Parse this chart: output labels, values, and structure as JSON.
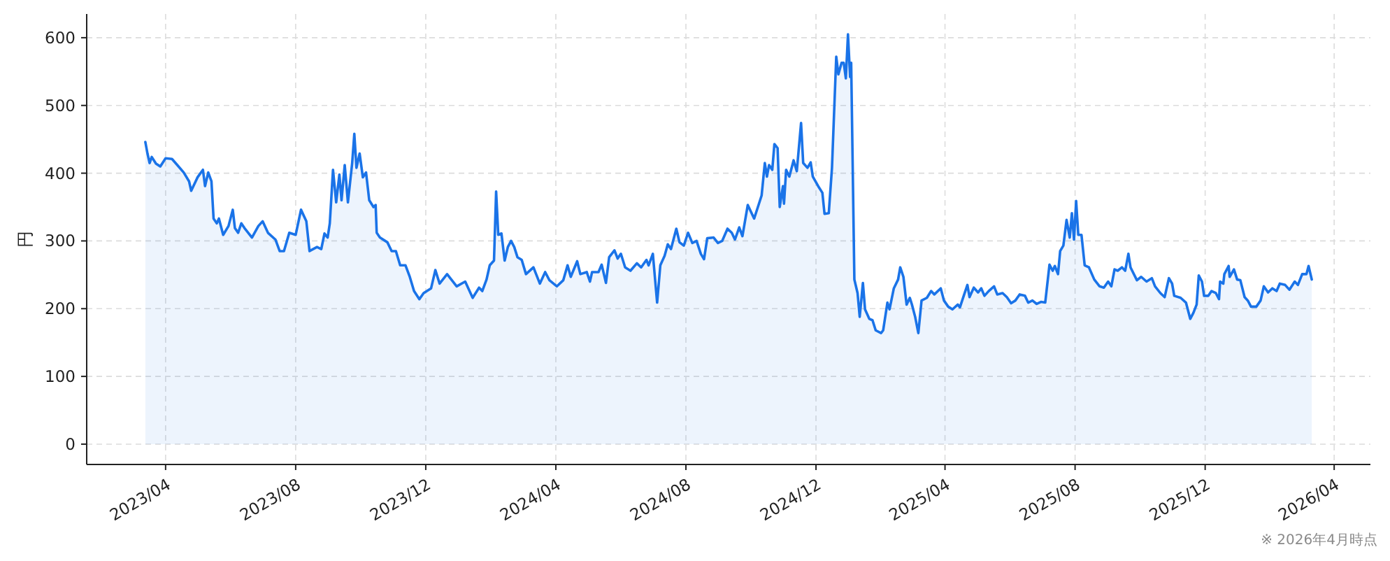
{
  "chart_data": {
    "type": "area",
    "ylabel": "円",
    "x": [
      "2023-03-13",
      "2023-03-15",
      "2023-03-17",
      "2023-03-19",
      "2023-03-23",
      "2023-03-27",
      "2023-04-01",
      "2023-04-07",
      "2023-04-12",
      "2023-04-18",
      "2023-04-23",
      "2023-04-25",
      "2023-05-01",
      "2023-05-06",
      "2023-05-08",
      "2023-05-11",
      "2023-05-14",
      "2023-05-16",
      "2023-05-19",
      "2023-05-21",
      "2023-05-25",
      "2023-05-30",
      "2023-06-03",
      "2023-06-05",
      "2023-06-08",
      "2023-06-11",
      "2023-06-14",
      "2023-06-21",
      "2023-06-27",
      "2023-07-01",
      "2023-07-06",
      "2023-07-13",
      "2023-07-17",
      "2023-07-21",
      "2023-07-26",
      "2023-08-01",
      "2023-08-06",
      "2023-08-11",
      "2023-08-14",
      "2023-08-21",
      "2023-08-25",
      "2023-08-28",
      "2023-08-31",
      "2023-09-02",
      "2023-09-05",
      "2023-09-08",
      "2023-09-11",
      "2023-09-13",
      "2023-09-16",
      "2023-09-19",
      "2023-09-23",
      "2023-09-25",
      "2023-09-27",
      "2023-09-30",
      "2023-10-03",
      "2023-10-06",
      "2023-10-09",
      "2023-10-13",
      "2023-10-15",
      "2023-10-16",
      "2023-10-19",
      "2023-10-26",
      "2023-10-30",
      "2023-11-03",
      "2023-11-07",
      "2023-11-12",
      "2023-11-16",
      "2023-11-20",
      "2023-11-25",
      "2023-11-29",
      "2023-12-06",
      "2023-12-10",
      "2023-12-14",
      "2023-12-21",
      "2023-12-30",
      "2024-01-07",
      "2024-01-14",
      "2024-01-20",
      "2024-01-23",
      "2024-01-27",
      "2024-01-30",
      "2024-02-03",
      "2024-02-05",
      "2024-02-07",
      "2024-02-10",
      "2024-02-13",
      "2024-02-16",
      "2024-02-19",
      "2024-02-22",
      "2024-02-25",
      "2024-02-29",
      "2024-03-04",
      "2024-03-11",
      "2024-03-17",
      "2024-03-22",
      "2024-03-26",
      "2024-04-02",
      "2024-04-08",
      "2024-04-12",
      "2024-04-15",
      "2024-04-21",
      "2024-04-24",
      "2024-04-30",
      "2024-05-03",
      "2024-05-05",
      "2024-05-11",
      "2024-05-14",
      "2024-05-18",
      "2024-05-21",
      "2024-05-26",
      "2024-05-29",
      "2024-06-01",
      "2024-06-05",
      "2024-06-10",
      "2024-06-16",
      "2024-06-20",
      "2024-06-25",
      "2024-06-27",
      "2024-07-01",
      "2024-07-05",
      "2024-07-08",
      "2024-07-12",
      "2024-07-15",
      "2024-07-18",
      "2024-07-23",
      "2024-07-26",
      "2024-07-30",
      "2024-08-03",
      "2024-08-07",
      "2024-08-11",
      "2024-08-15",
      "2024-08-18",
      "2024-08-21",
      "2024-08-27",
      "2024-08-31",
      "2024-09-04",
      "2024-09-09",
      "2024-09-13",
      "2024-09-16",
      "2024-09-20",
      "2024-09-23",
      "2024-09-28",
      "2024-10-04",
      "2024-10-11",
      "2024-10-14",
      "2024-10-16",
      "2024-10-18",
      "2024-10-21",
      "2024-10-23",
      "2024-10-26",
      "2024-10-28",
      "2024-10-31",
      "2024-11-01",
      "2024-11-03",
      "2024-11-06",
      "2024-11-10",
      "2024-11-13",
      "2024-11-17",
      "2024-11-19",
      "2024-11-23",
      "2024-11-26",
      "2024-11-28",
      "2024-12-03",
      "2024-12-07",
      "2024-12-09",
      "2024-12-13",
      "2024-12-16",
      "2024-12-20",
      "2024-12-22",
      "2024-12-25",
      "2024-12-27",
      "2024-12-29",
      "2024-12-31",
      "2025-01-02",
      "2025-01-03",
      "2025-01-06",
      "2025-01-09",
      "2025-01-11",
      "2025-01-14",
      "2025-01-16",
      "2025-01-20",
      "2025-01-23",
      "2025-01-26",
      "2025-01-31",
      "2025-02-02",
      "2025-02-06",
      "2025-02-08",
      "2025-02-12",
      "2025-02-16",
      "2025-02-18",
      "2025-02-21",
      "2025-02-24",
      "2025-02-27",
      "2025-03-01",
      "2025-03-04",
      "2025-03-07",
      "2025-03-10",
      "2025-03-15",
      "2025-03-19",
      "2025-03-22",
      "2025-03-28",
      "2025-03-31",
      "2025-04-04",
      "2025-04-08",
      "2025-04-13",
      "2025-04-15",
      "2025-04-19",
      "2025-04-22",
      "2025-04-24",
      "2025-04-28",
      "2025-05-02",
      "2025-05-05",
      "2025-05-08",
      "2025-05-12",
      "2025-05-17",
      "2025-05-20",
      "2025-05-25",
      "2025-05-29",
      "2025-06-02",
      "2025-06-06",
      "2025-06-10",
      "2025-06-15",
      "2025-06-18",
      "2025-06-22",
      "2025-06-26",
      "2025-06-30",
      "2025-07-04",
      "2025-07-08",
      "2025-07-11",
      "2025-07-13",
      "2025-07-16",
      "2025-07-18",
      "2025-07-21",
      "2025-07-24",
      "2025-07-27",
      "2025-07-29",
      "2025-07-31",
      "2025-08-02",
      "2025-08-04",
      "2025-08-07",
      "2025-08-10",
      "2025-08-14",
      "2025-08-19",
      "2025-08-24",
      "2025-08-28",
      "2025-09-01",
      "2025-09-04",
      "2025-09-07",
      "2025-09-10",
      "2025-09-14",
      "2025-09-17",
      "2025-09-20",
      "2025-09-22",
      "2025-09-28",
      "2025-10-02",
      "2025-10-07",
      "2025-10-12",
      "2025-10-15",
      "2025-10-20",
      "2025-10-24",
      "2025-10-28",
      "2025-10-31",
      "2025-11-02",
      "2025-11-08",
      "2025-11-13",
      "2025-11-17",
      "2025-11-20",
      "2025-11-23",
      "2025-11-25",
      "2025-11-28",
      "2025-11-30",
      "2025-12-04",
      "2025-12-07",
      "2025-12-11",
      "2025-12-14",
      "2025-12-15",
      "2025-12-18",
      "2025-12-19",
      "2025-12-23",
      "2025-12-24",
      "2025-12-28",
      "2025-12-31",
      "2026-01-03",
      "2026-01-07",
      "2026-01-10",
      "2026-01-13",
      "2026-01-18",
      "2026-01-22",
      "2026-01-25",
      "2026-01-29",
      "2026-02-02",
      "2026-02-06",
      "2026-02-09",
      "2026-02-14",
      "2026-02-18",
      "2026-02-23",
      "2026-02-26",
      "2026-03-02",
      "2026-03-06",
      "2026-03-08",
      "2026-03-11"
    ],
    "series": [
      {
        "color": "#1a73e8",
        "values": [
          446,
          429,
          415,
          424,
          414,
          410,
          422,
          421,
          412,
          401,
          388,
          374,
          394,
          405,
          381,
          401,
          388,
          333,
          326,
          333,
          309,
          322,
          346,
          319,
          312,
          326,
          319,
          305,
          322,
          329,
          312,
          302,
          285,
          285,
          312,
          309,
          346,
          329,
          285,
          291,
          288,
          311,
          305,
          326,
          405,
          357,
          398,
          360,
          412,
          357,
          415,
          458,
          408,
          429,
          394,
          401,
          360,
          350,
          353,
          312,
          305,
          298,
          285,
          285,
          264,
          264,
          247,
          226,
          214,
          223,
          230,
          257,
          237,
          251,
          233,
          240,
          216,
          231,
          226,
          243,
          264,
          271,
          373,
          309,
          311,
          271,
          291,
          300,
          291,
          276,
          272,
          251,
          261,
          237,
          254,
          242,
          233,
          242,
          264,
          247,
          270,
          251,
          254,
          240,
          254,
          254,
          265,
          238,
          276,
          286,
          274,
          281,
          261,
          256,
          267,
          261,
          272,
          264,
          281,
          209,
          264,
          278,
          295,
          288,
          318,
          298,
          293,
          312,
          297,
          300,
          281,
          273,
          304,
          305,
          297,
          300,
          318,
          312,
          302,
          320,
          307,
          353,
          333,
          367,
          415,
          395,
          412,
          405,
          443,
          437,
          350,
          381,
          355,
          405,
          395,
          419,
          403,
          474,
          415,
          408,
          416,
          395,
          381,
          371,
          340,
          341,
          408,
          572,
          546,
          563,
          563,
          540,
          605,
          542,
          563,
          243,
          223,
          188,
          238,
          199,
          185,
          183,
          168,
          164,
          168,
          209,
          199,
          230,
          243,
          261,
          247,
          206,
          216,
          206,
          188,
          164,
          212,
          216,
          226,
          221,
          230,
          212,
          203,
          199,
          206,
          202,
          221,
          235,
          217,
          231,
          224,
          230,
          219,
          226,
          233,
          221,
          223,
          217,
          208,
          212,
          221,
          219,
          209,
          212,
          207,
          210,
          209,
          265,
          256,
          263,
          251,
          285,
          293,
          331,
          305,
          341,
          302,
          359,
          309,
          309,
          264,
          261,
          243,
          233,
          231,
          240,
          233,
          258,
          256,
          261,
          256,
          281,
          261,
          242,
          247,
          240,
          245,
          233,
          223,
          217,
          245,
          237,
          219,
          216,
          209,
          185,
          194,
          206,
          249,
          240,
          219,
          219,
          226,
          223,
          214,
          240,
          237,
          251,
          263,
          247,
          258,
          243,
          242,
          217,
          212,
          203,
          203,
          212,
          233,
          224,
          230,
          226,
          237,
          235,
          228,
          240,
          235,
          251,
          251,
          263,
          243
        ]
      }
    ],
    "xlim": [
      "2023-01-17",
      "2026-05-05"
    ],
    "ylim": [
      -30,
      635
    ],
    "xticks": [
      {
        "value": "2023-04",
        "label": "2023/04"
      },
      {
        "value": "2023-08",
        "label": "2023/08"
      },
      {
        "value": "2023-12",
        "label": "2023/12"
      },
      {
        "value": "2024-04",
        "label": "2024/04"
      },
      {
        "value": "2024-08",
        "label": "2024/08"
      },
      {
        "value": "2024-12",
        "label": "2024/12"
      },
      {
        "value": "2025-04",
        "label": "2025/04"
      },
      {
        "value": "2025-08",
        "label": "2025/08"
      },
      {
        "value": "2025-12",
        "label": "2025/12"
      },
      {
        "value": "2026-04",
        "label": "2026/04"
      }
    ],
    "yticks": [
      0,
      100,
      200,
      300,
      400,
      500,
      600
    ],
    "grid": true,
    "annotations": [
      "※ 2026年4月時点"
    ]
  }
}
